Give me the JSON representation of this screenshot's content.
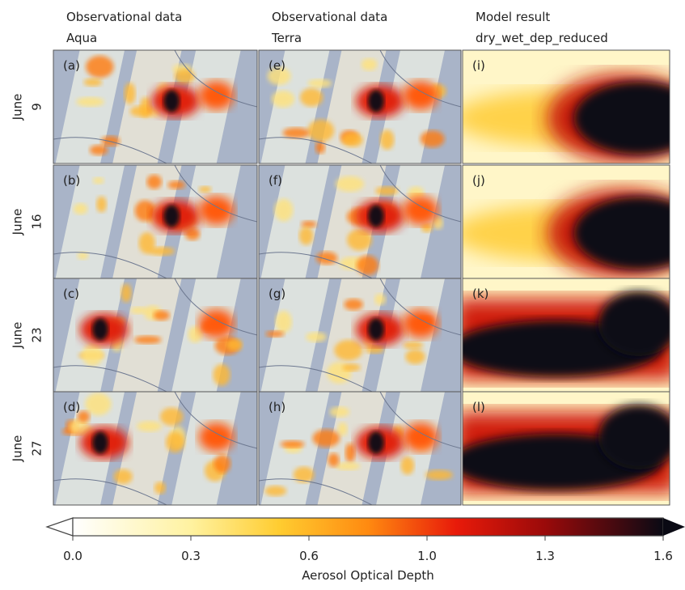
{
  "columns": [
    {
      "title": "Observational data",
      "subtitle": "Aqua"
    },
    {
      "title": "Observational data",
      "subtitle": "Terra"
    },
    {
      "title": "Model result",
      "subtitle": "dry_wet_dep_reduced"
    }
  ],
  "rows": [
    {
      "month": "June",
      "day": "9",
      "panels": [
        "(a)",
        "(e)",
        "(i)"
      ]
    },
    {
      "month": "June",
      "day": "16",
      "panels": [
        "(b)",
        "(f)",
        "(j)"
      ]
    },
    {
      "month": "June",
      "day": "23",
      "panels": [
        "(c)",
        "(g)",
        "(k)"
      ]
    },
    {
      "month": "June",
      "day": "27",
      "panels": [
        "(d)",
        "(h)",
        "(l)"
      ]
    }
  ],
  "colorbar": {
    "label": "Aerosol Optical Depth",
    "ticks": [
      {
        "value": 0,
        "label": "0.0"
      },
      0.3,
      0.6,
      {
        "value": 1,
        "label": "1.0"
      },
      1.3,
      1.6
    ]
  }
}
